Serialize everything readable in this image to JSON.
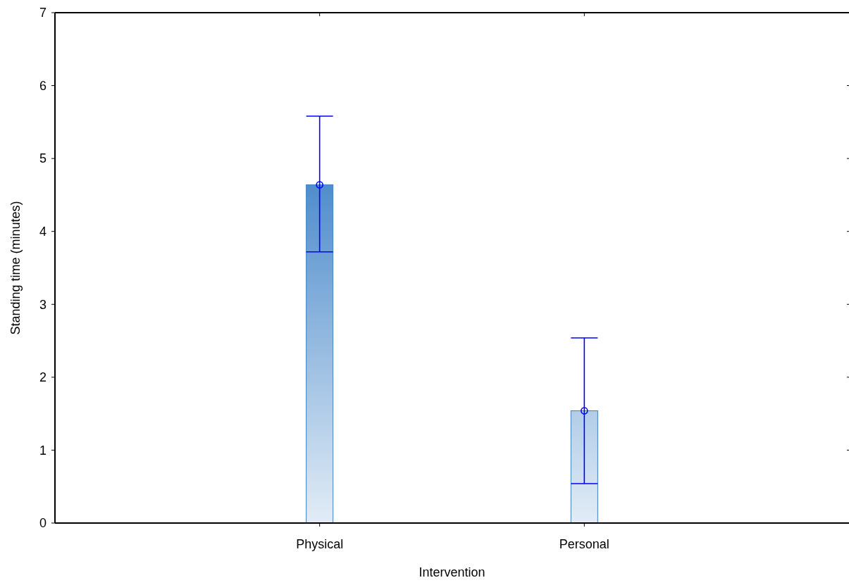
{
  "chart_data": {
    "type": "bar",
    "xlabel": "Intervention",
    "ylabel": "Standing time (minutes)",
    "categories": [
      "Physical",
      "Personal"
    ],
    "series": [
      {
        "color": "#3c80c6",
        "values": [
          4.64,
          1.54
        ],
        "errors": [
          [
            3.72,
            5.58
          ],
          [
            0.54,
            2.54
          ]
        ]
      },
      {
        "type": "scatter",
        "color": "#0000ff",
        "x": [
          "Physical",
          "Personal"
        ],
        "values": [
          4.64,
          1.54
        ]
      }
    ],
    "ylim": [
      0,
      7
    ],
    "yticks": [
      0,
      1,
      2,
      3,
      4,
      5,
      6,
      7
    ],
    "marker": "circle",
    "grid": false
  }
}
